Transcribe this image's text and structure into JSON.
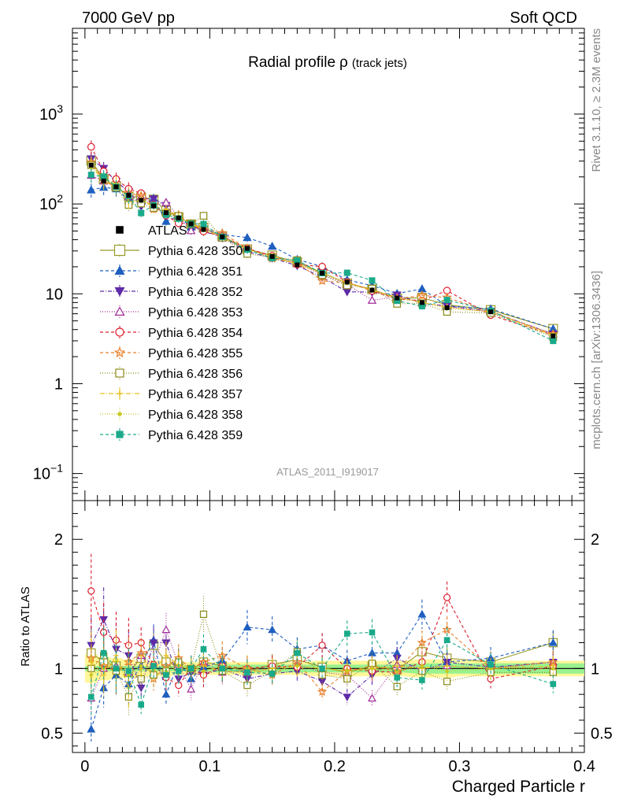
{
  "header": {
    "left": "7000 GeV pp",
    "right": "Soft QCD"
  },
  "side_labels": {
    "rivet": "Rivet 3.1.10, ≥ 2.3M events",
    "mcplots": "mcplots.cern.ch [arXiv:1306.3436]"
  },
  "chart_data": {
    "type": "scatter",
    "title": "Radial profile",
    "title_symbol": "ρ",
    "title_suffix": "(track jets)",
    "analysis_label": "ATLAS_2011_I919017",
    "xlabel": "Charged Particle r",
    "ylabel_ratio": "Ratio to ATLAS",
    "xlim": [
      -0.01,
      0.4
    ],
    "ylim_main": [
      0.05,
      9000
    ],
    "ylim_ratio": [
      0.35,
      2.3
    ],
    "yscale_main": "log",
    "x_ticks": [
      {
        "v": 0,
        "label": "0"
      },
      {
        "v": 0.1,
        "label": "0.1"
      },
      {
        "v": 0.2,
        "label": "0.2"
      },
      {
        "v": 0.3,
        "label": "0.3"
      },
      {
        "v": 0.4,
        "label": "0.4"
      }
    ],
    "y_ticks_main": [
      {
        "v": 0.1,
        "label": "10",
        "sup": "−1"
      },
      {
        "v": 1,
        "label": "1",
        "sup": ""
      },
      {
        "v": 10,
        "label": "10",
        "sup": ""
      },
      {
        "v": 100,
        "label": "10",
        "sup": "2"
      },
      {
        "v": 1000,
        "label": "10",
        "sup": "3"
      }
    ],
    "y_ticks_ratio": [
      {
        "v": 0.5,
        "label": "0.5"
      },
      {
        "v": 1,
        "label": "1"
      },
      {
        "v": 2,
        "label": "2"
      }
    ],
    "legend_position": "middle-left",
    "x": [
      0.005,
      0.015,
      0.025,
      0.035,
      0.045,
      0.055,
      0.065,
      0.075,
      0.085,
      0.095,
      0.11,
      0.13,
      0.15,
      0.17,
      0.19,
      0.21,
      0.23,
      0.25,
      0.27,
      0.29,
      0.325,
      0.375
    ],
    "data": {
      "name": "ATLAS",
      "values": [
        270,
        180,
        155,
        125,
        110,
        95,
        80,
        70,
        60,
        52,
        43,
        32,
        26,
        21,
        17,
        13.5,
        11,
        9,
        8,
        7,
        6.3,
        3.4
      ],
      "band_stat": [
        0.02,
        0.02,
        0.02,
        0.02,
        0.02,
        0.02,
        0.02,
        0.02,
        0.02,
        0.02,
        0.03,
        0.03,
        0.03,
        0.03,
        0.03,
        0.03,
        0.03,
        0.03,
        0.04,
        0.04,
        0.04,
        0.04
      ],
      "band_total": [
        0.11,
        0.09,
        0.08,
        0.07,
        0.06,
        0.06,
        0.06,
        0.05,
        0.05,
        0.05,
        0.05,
        0.05,
        0.05,
        0.05,
        0.06,
        0.06,
        0.06,
        0.06,
        0.07,
        0.07,
        0.06,
        0.06
      ]
    },
    "series": [
      {
        "name": "Pythia 6.428 350",
        "color": "#9a9a2a",
        "marker": "square-open",
        "dash": "",
        "ms": 6.5,
        "ratio": [
          1.12,
          1.05,
          1.02,
          0.97,
          1.08,
          1.18,
          1.05,
          1.02,
          0.99,
          1.05,
          1.02,
          0.98,
          1.03,
          1.07,
          1.01,
          0.97,
          1.02,
          0.99,
          1.13,
          1.08,
          1.05,
          1.2
        ]
      },
      {
        "name": "Pythia 6.428 351",
        "color": "#1f5fbf",
        "marker": "triangle-up",
        "dash": "4,3",
        "ms": 5.5,
        "ratio": [
          0.53,
          0.85,
          0.95,
          0.88,
          1.02,
          1.22,
          0.8,
          1.05,
          0.92,
          1.01,
          1.06,
          1.32,
          1.3,
          1.15,
          1.18,
          1.06,
          1.12,
          1.12,
          1.42,
          1.05,
          1.08,
          1.2
        ]
      },
      {
        "name": "Pythia 6.428 352",
        "color": "#5e2aa8",
        "marker": "triangle-down",
        "dash": "5,2,1,2",
        "ms": 5.5,
        "ratio": [
          1.18,
          1.38,
          1.15,
          1.1,
          0.85,
          1.2,
          1.2,
          0.92,
          0.97,
          0.95,
          1.0,
          0.92,
          0.96,
          0.98,
          0.9,
          0.78,
          0.95,
          1.08,
          0.98,
          1.05,
          1.01,
          1.05
        ]
      },
      {
        "name": "Pythia 6.428 353",
        "color": "#a02a9a",
        "marker": "triangle-up-open",
        "dash": "1,2",
        "ms": 5.5,
        "ratio": [
          0.77,
          1.0,
          1.02,
          0.97,
          1.1,
          1.03,
          1.3,
          1.03,
          0.84,
          1.05,
          0.97,
          0.99,
          1.0,
          1.03,
          0.97,
          0.95,
          0.77,
          1.03,
          1.0,
          1.02,
          1.0,
          1.05
        ]
      },
      {
        "name": "Pythia 6.428 354",
        "color": "#dd1e2e",
        "marker": "circle-open",
        "dash": "4,3",
        "ms": 5.0,
        "ratio": [
          1.6,
          1.28,
          1.22,
          1.18,
          1.2,
          1.03,
          0.93,
          0.87,
          1.0,
          0.95,
          1.02,
          1.0,
          1.02,
          1.01,
          1.18,
          1.0,
          0.98,
          0.97,
          1.05,
          1.55,
          0.92,
          1.02
        ]
      },
      {
        "name": "Pythia 6.428 355",
        "color": "#e8802a",
        "marker": "star",
        "dash": "4,3",
        "ms": 6.0,
        "ratio": [
          1.08,
          1.02,
          0.98,
          1.05,
          1.12,
          0.92,
          1.02,
          1.08,
          1.0,
          1.05,
          1.1,
          1.0,
          0.95,
          1.05,
          0.82,
          0.98,
          1.02,
          0.98,
          1.2,
          1.3,
          1.0,
          1.05
        ]
      },
      {
        "name": "Pythia 6.428 356",
        "color": "#8a8a1a",
        "marker": "square-open",
        "dash": "1,2",
        "ms": 5.0,
        "ratio": [
          1.0,
          1.1,
          0.98,
          0.78,
          0.92,
          0.95,
          0.98,
          1.05,
          1.0,
          1.42,
          0.98,
          0.87,
          0.98,
          1.13,
          0.95,
          0.92,
          1.04,
          0.86,
          0.98,
          0.9,
          0.97,
          0.97
        ]
      },
      {
        "name": "Pythia 6.428 357",
        "color": "#e8c020",
        "marker": "cross-dot",
        "dash": "6,2,1,2",
        "ms": 4.0,
        "ratio": [
          1.05,
          0.95,
          1.1,
          0.85,
          1.0,
          0.98,
          1.1,
          1.03,
          0.98,
          1.02,
          0.98,
          0.97,
          1.0,
          1.02,
          1.0,
          0.98,
          1.0,
          1.02,
          1.0,
          1.02,
          1.0,
          1.02
        ]
      },
      {
        "name": "Pythia 6.428 358",
        "color": "#c8c820",
        "marker": "dot",
        "dash": "1,2",
        "ms": 2.2,
        "ratio": [
          0.95,
          1.0,
          1.05,
          0.95,
          1.02,
          1.0,
          0.98,
          1.02,
          1.0,
          0.98,
          1.02,
          1.0,
          0.98,
          1.02,
          1.0,
          0.98,
          1.0,
          0.98,
          1.02,
          0.98,
          1.0,
          1.0
        ]
      },
      {
        "name": "Pythia 6.428 359",
        "color": "#1aaa8a",
        "marker": "square",
        "dash": "4,3",
        "ms": 4.0,
        "ratio": [
          0.78,
          1.12,
          1.0,
          0.98,
          0.72,
          1.02,
          0.95,
          0.98,
          1.0,
          1.15,
          1.0,
          0.97,
          0.96,
          1.12,
          1.0,
          1.27,
          1.28,
          0.93,
          0.91,
          1.22,
          1.03,
          0.88
        ]
      }
    ]
  }
}
